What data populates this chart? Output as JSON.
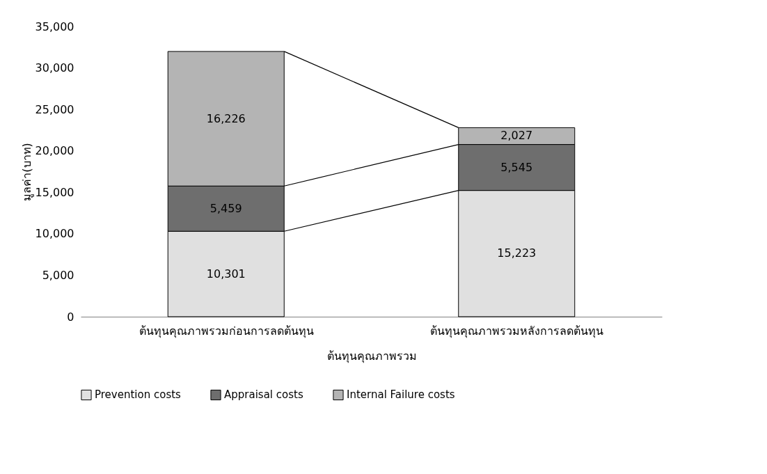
{
  "chart_data": {
    "type": "bar",
    "stacked": true,
    "xlabel": "ต้นทุนคุณภาพรวม",
    "ylabel": "มูลค่า(บาท)",
    "categories": [
      "ต้นทุนคุณภาพรวมก่อนการลดต้นทุน",
      "ต้นทุนคุณภาพรวมหลังการลดต้นทุน"
    ],
    "series": [
      {
        "name": "Prevention costs",
        "color": "#e0e0e0",
        "values": [
          10301,
          15223
        ],
        "value_labels": [
          "10,301",
          "15,223"
        ]
      },
      {
        "name": "Appraisal costs",
        "color": "#6e6e6e",
        "values": [
          5459,
          5545
        ],
        "value_labels": [
          "5,459",
          "5,545"
        ]
      },
      {
        "name": "Internal Failure costs",
        "color": "#b4b4b4",
        "values": [
          16226,
          2027
        ],
        "value_labels": [
          "16,226",
          "2,027"
        ]
      }
    ],
    "ylim": [
      0,
      35000
    ],
    "yticks": [
      0,
      {
        "value": 5000,
        "label": "5,000"
      },
      {
        "value": 10000,
        "label": "10,000"
      },
      {
        "value": 15000,
        "label": "15,000"
      },
      {
        "value": 20000,
        "label": "20,000"
      },
      {
        "value": 25000,
        "label": "25,000"
      },
      {
        "value": 30000,
        "label": "30,000"
      },
      {
        "value": 35000,
        "label": "35,000"
      }
    ],
    "grid": false,
    "legend": "bottom"
  }
}
